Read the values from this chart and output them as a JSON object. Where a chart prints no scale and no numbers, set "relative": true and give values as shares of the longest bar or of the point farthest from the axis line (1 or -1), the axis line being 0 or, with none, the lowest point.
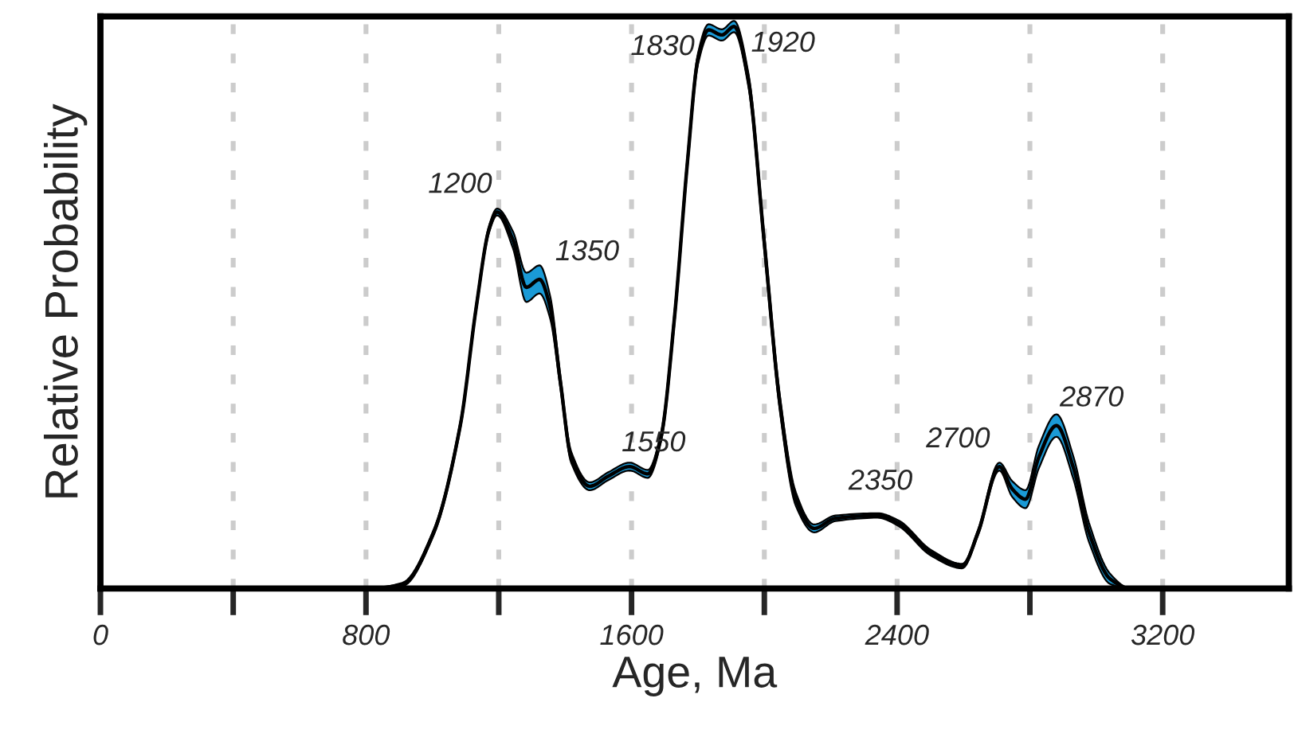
{
  "chart_data": {
    "type": "line",
    "relative": true,
    "xlabel": "Age, Ma",
    "ylabel": "Relative Probability",
    "xlim": [
      0,
      3580
    ],
    "xticks": [
      0,
      {
        "value": 400,
        "label": null
      },
      800,
      {
        "value": 1200,
        "label": null
      },
      1600,
      {
        "value": 2000,
        "label": null
      },
      2400,
      {
        "value": 2800,
        "label": null
      },
      3200
    ],
    "grid": "x",
    "tick_labels": "x",
    "marker": "none",
    "line_style": "solid",
    "series": [
      {
        "color": "#000000",
        "x": [
          100,
          800,
          909,
          1004,
          1084,
          1132,
          1171,
          1195,
          1243,
          1283,
          1323,
          1355,
          1386,
          1418,
          1474,
          1530,
          1594,
          1649,
          1689,
          1729,
          1769,
          1800,
          1832,
          1872,
          1909,
          1952,
          1999,
          2047,
          2095,
          2150,
          2214,
          2341,
          2405,
          2501,
          2596,
          2644,
          2708,
          2747,
          2787,
          2827,
          2880,
          2931,
          2978,
          3042,
          3105,
          3500
        ],
        "values": [
          0,
          0,
          0.007,
          0.1,
          0.29,
          0.5,
          0.64,
          0.67,
          0.62,
          0.536,
          0.55,
          0.5,
          0.366,
          0.234,
          0.182,
          0.2,
          0.217,
          0.204,
          0.27,
          0.48,
          0.763,
          0.942,
          0.994,
          0.985,
          1.0,
          0.905,
          0.621,
          0.329,
          0.159,
          0.107,
          0.125,
          0.13,
          0.116,
          0.064,
          0.04,
          0.1,
          0.217,
          0.177,
          0.159,
          0.234,
          0.29,
          0.215,
          0.1,
          0.017,
          0,
          0
        ],
        "lower": [
          0,
          0,
          0.004,
          0.095,
          0.284,
          0.494,
          0.634,
          0.664,
          0.605,
          0.51,
          0.525,
          0.48,
          0.355,
          0.224,
          0.175,
          0.193,
          0.21,
          0.197,
          0.262,
          0.47,
          0.753,
          0.932,
          0.984,
          0.975,
          0.99,
          0.893,
          0.607,
          0.315,
          0.147,
          0.1,
          0.12,
          0.126,
          0.111,
          0.059,
          0.036,
          0.095,
          0.21,
          0.163,
          0.143,
          0.214,
          0.27,
          0.195,
          0.083,
          0.008,
          0,
          0
        ],
        "upper": [
          0,
          0,
          0.01,
          0.105,
          0.296,
          0.506,
          0.646,
          0.676,
          0.635,
          0.562,
          0.575,
          0.52,
          0.377,
          0.244,
          0.189,
          0.207,
          0.224,
          0.211,
          0.278,
          0.49,
          0.773,
          0.952,
          1.004,
          0.995,
          1.01,
          0.917,
          0.635,
          0.343,
          0.171,
          0.114,
          0.13,
          0.134,
          0.121,
          0.069,
          0.044,
          0.105,
          0.224,
          0.191,
          0.175,
          0.254,
          0.31,
          0.235,
          0.117,
          0.026,
          0,
          0
        ]
      }
    ],
    "annotations": [
      {
        "text": "1200",
        "x": 1200,
        "y": 0.67
      },
      {
        "text": "1350",
        "x": 1350,
        "y": 0.55
      },
      {
        "text": "1550",
        "x": 1550,
        "y": 0.21
      },
      {
        "text": "1830",
        "x": 1830,
        "y": 0.994
      },
      {
        "text": "1920",
        "x": 1920,
        "y": 1.0
      },
      {
        "text": "2350",
        "x": 2350,
        "y": 0.13
      },
      {
        "text": "2700",
        "x": 2700,
        "y": 0.217
      },
      {
        "text": "2870",
        "x": 2870,
        "y": 0.29
      }
    ]
  }
}
